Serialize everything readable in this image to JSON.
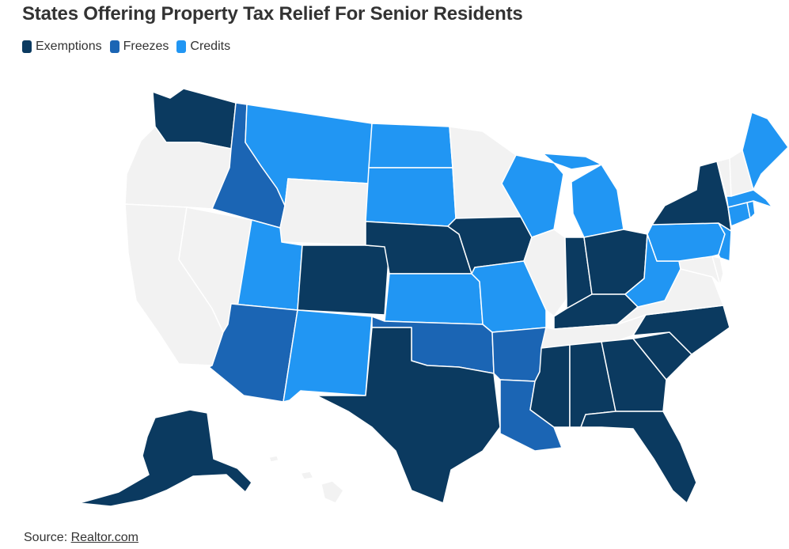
{
  "title": "States Offering Property Tax Relief For Senior Residents",
  "legend": [
    {
      "label": "Exemptions",
      "color": "#0b3a60"
    },
    {
      "label": "Freezes",
      "color": "#1b65b4"
    },
    {
      "label": "Credits",
      "color": "#2196f3"
    }
  ],
  "no_data_color": "#f2f2f2",
  "source": {
    "prefix": "Source: ",
    "link_text": "Realtor.com"
  },
  "states": {
    "WA": "Exemptions",
    "OR": "none",
    "CA": "none",
    "NV": "none",
    "ID": "Freezes",
    "MT": "Credits",
    "WY": "none",
    "UT": "Credits",
    "CO": "Exemptions",
    "AZ": "Freezes",
    "NM": "Credits",
    "ND": "Credits",
    "SD": "Credits",
    "NE": "Exemptions",
    "KS": "Credits",
    "OK": "Freezes",
    "TX": "Exemptions",
    "MN": "none",
    "IA": "Exemptions",
    "MO": "Credits",
    "AR": "Freezes",
    "LA": "Freezes",
    "WI": "Credits",
    "IL": "none",
    "MI": "Credits",
    "IN": "Exemptions",
    "OH": "Exemptions",
    "KY": "Exemptions",
    "TN": "none",
    "MS": "Exemptions",
    "AL": "Exemptions",
    "GA": "Exemptions",
    "FL": "Exemptions",
    "SC": "Exemptions",
    "NC": "Exemptions",
    "VA": "none",
    "WV": "Credits",
    "MD": "none",
    "DE": "none",
    "PA": "Credits",
    "NJ": "Credits",
    "NY": "Exemptions",
    "CT": "Credits",
    "RI": "Credits",
    "MA": "Credits",
    "VT": "none",
    "NH": "none",
    "ME": "Credits",
    "AK": "Exemptions",
    "HI": "none"
  }
}
